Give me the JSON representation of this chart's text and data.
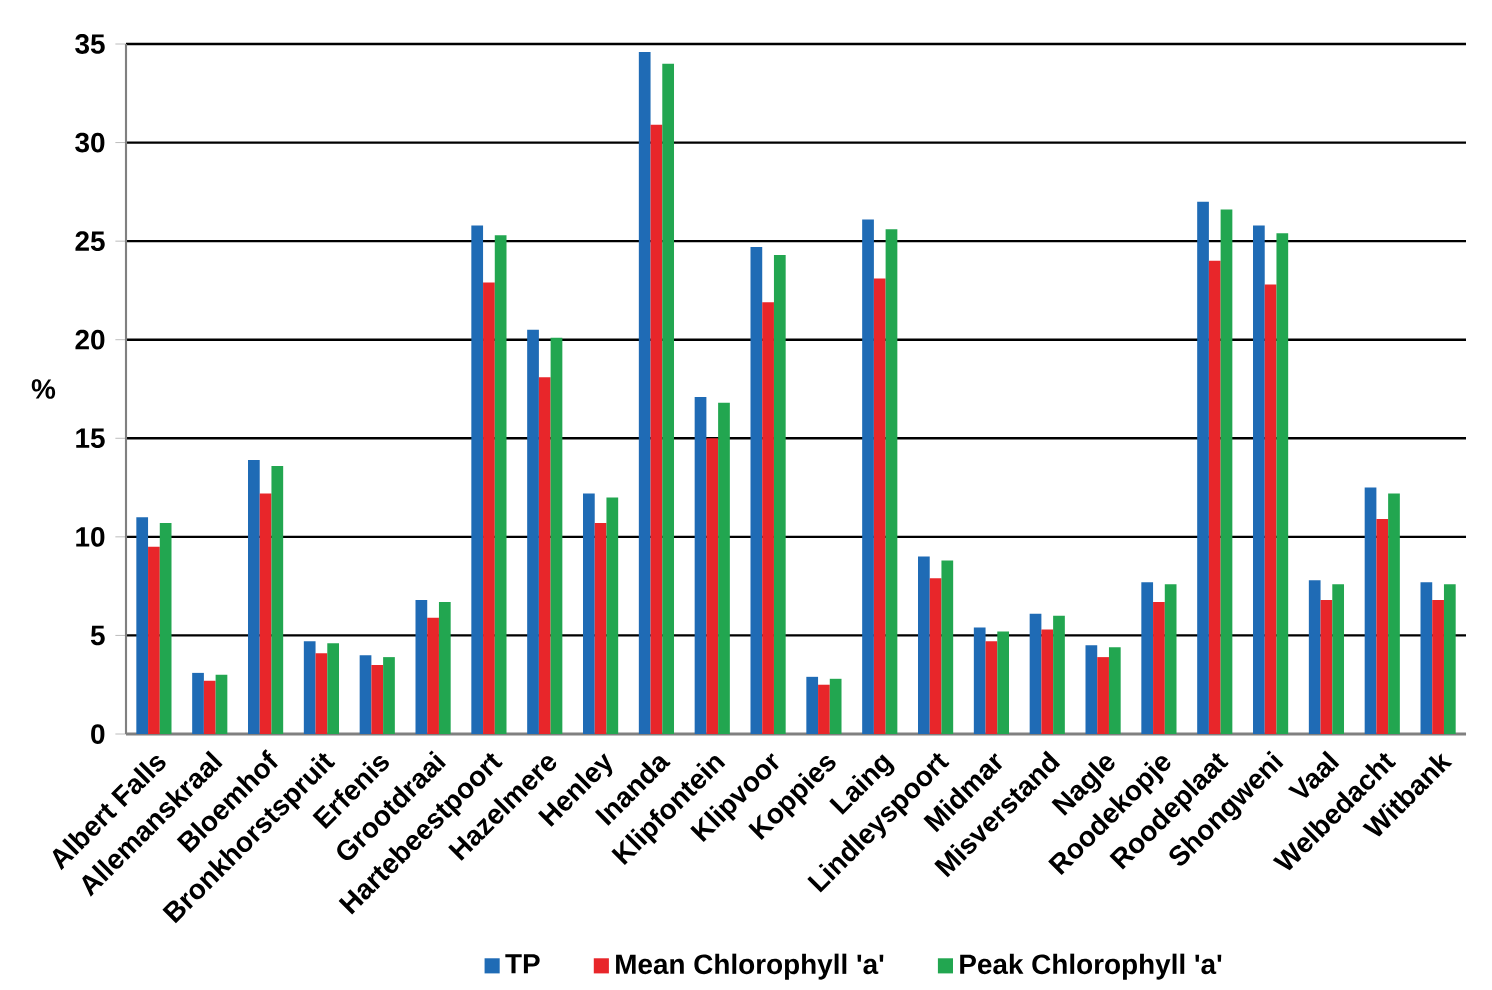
{
  "chart_data": {
    "type": "bar",
    "ylabel": "%",
    "categories": [
      "Albert Falls",
      "Allemanskraal",
      "Bloemhof",
      "Bronkhorstspruit",
      "Erfenis",
      "Grootdraai",
      "Hartebeestpoort",
      "Hazelmere",
      "Henley",
      "Inanda",
      "Klipfontein",
      "Klipvoor",
      "Koppies",
      "Laing",
      "Lindleyspoort",
      "Midmar",
      "Misverstand",
      "Nagle",
      "Roodekopje",
      "Roodeplaat",
      "Shongweni",
      "Vaal",
      "Welbedacht",
      "Witbank"
    ],
    "series": [
      {
        "name": "TP",
        "color": "#1f6bb5",
        "values": [
          11.0,
          3.1,
          13.9,
          4.7,
          4.0,
          6.8,
          25.8,
          20.5,
          12.2,
          34.6,
          17.1,
          24.7,
          2.9,
          26.1,
          9.0,
          5.4,
          6.1,
          4.5,
          7.7,
          27.0,
          25.8,
          7.8,
          12.5,
          7.7
        ]
      },
      {
        "name": "Mean Chlorophyll 'a'",
        "color": "#e8262a",
        "values": [
          9.5,
          2.7,
          12.2,
          4.1,
          3.5,
          5.9,
          22.9,
          18.1,
          10.7,
          30.9,
          15.0,
          21.9,
          2.5,
          23.1,
          7.9,
          4.7,
          5.3,
          3.9,
          6.7,
          24.0,
          22.8,
          6.8,
          10.9,
          6.8
        ]
      },
      {
        "name": "Peak Chlorophyll 'a'",
        "color": "#22a650",
        "values": [
          10.7,
          3.0,
          13.6,
          4.6,
          3.9,
          6.7,
          25.3,
          20.1,
          12.0,
          34.0,
          16.8,
          24.3,
          2.8,
          25.6,
          8.8,
          5.2,
          6.0,
          4.4,
          7.6,
          26.6,
          25.4,
          7.6,
          12.2,
          7.6
        ]
      }
    ],
    "ylim": [
      0,
      35
    ],
    "yticks": [
      0,
      5,
      10,
      15,
      20,
      25,
      30,
      35
    ],
    "grid": "y",
    "legend": "bottom"
  }
}
